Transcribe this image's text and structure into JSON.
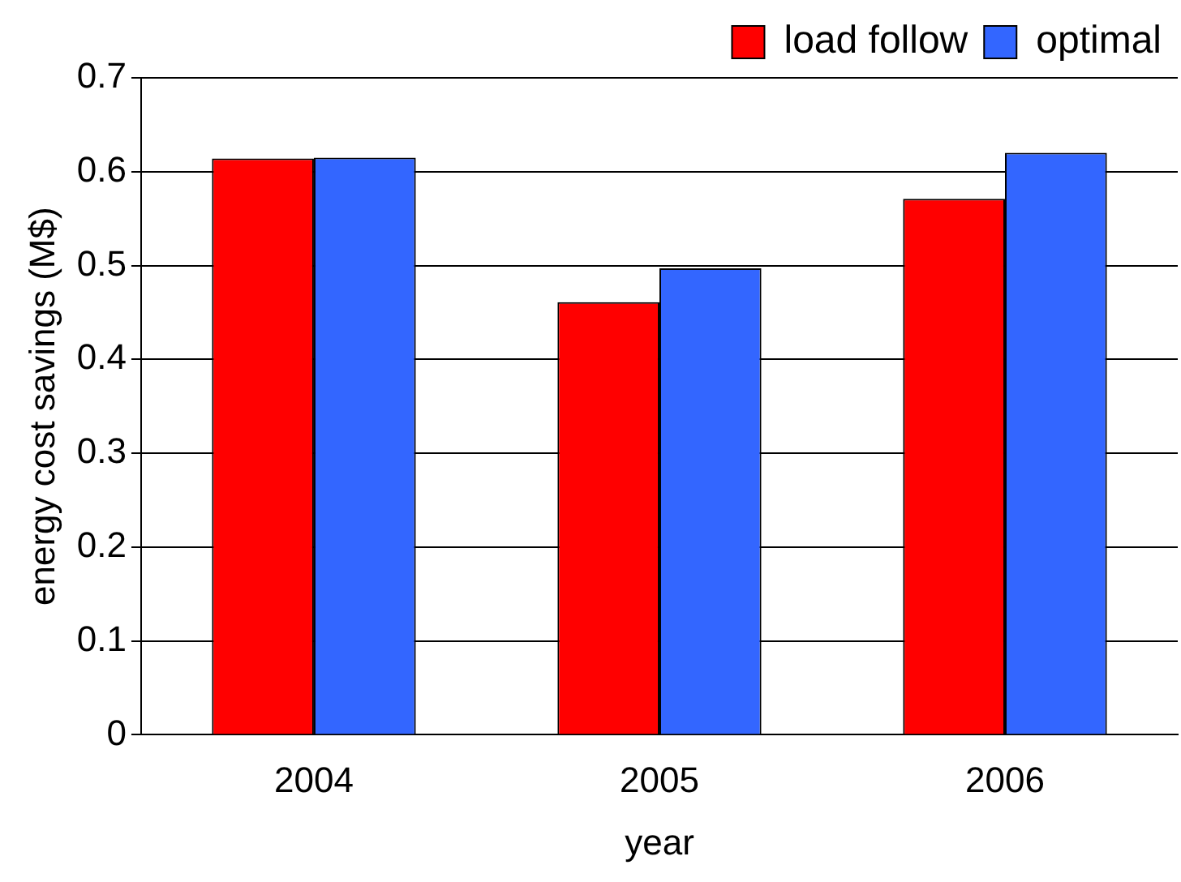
{
  "chart_data": {
    "type": "bar",
    "xlabel": "year",
    "ylabel": "energy cost savings (M$)",
    "categories": [
      "2004",
      "2005",
      "2006"
    ],
    "series": [
      {
        "name": "load follow",
        "color": "#ff0000",
        "values": [
          0.614,
          0.461,
          0.571
        ]
      },
      {
        "name": "optimal",
        "color": "#3366ff",
        "values": [
          0.615,
          0.497,
          0.62
        ]
      }
    ],
    "ylim": [
      0,
      0.7
    ],
    "yticks": [
      0,
      0.1,
      0.2,
      0.3,
      0.4,
      0.5,
      0.6,
      0.7
    ],
    "grid": "y",
    "legend": "top right"
  }
}
